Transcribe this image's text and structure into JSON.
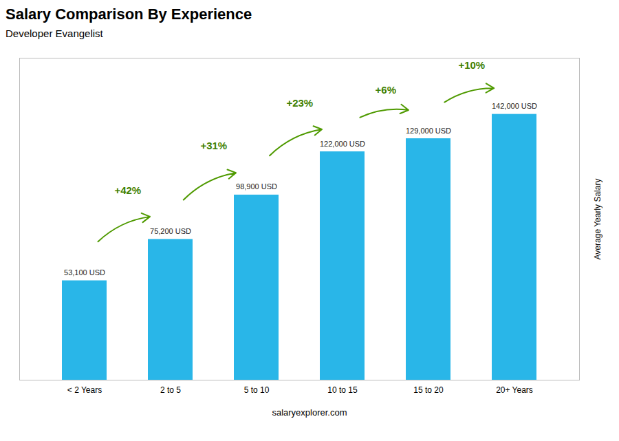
{
  "chart_data": {
    "type": "bar",
    "title": "Salary Comparison By Experience",
    "subtitle": "Developer Evangelist",
    "categories": [
      "< 2 Years",
      "2 to 5",
      "5 to 10",
      "10 to 15",
      "15 to 20",
      "20+ Years"
    ],
    "values": [
      53100,
      75200,
      98900,
      122000,
      129000,
      142000
    ],
    "value_labels": [
      "53,100 USD",
      "75,200 USD",
      "98,900 USD",
      "122,000 USD",
      "129,000 USD",
      "142,000 USD"
    ],
    "data_labels": true,
    "color": "#29b6e8",
    "ylabel": "Average Yearly Salary",
    "ylim": [
      0,
      172000
    ],
    "yticks": [],
    "tick_labels": "x",
    "annotations": [
      {
        "text": "+42%",
        "from": "< 2 Years",
        "to": "2 to 5"
      },
      {
        "text": "+31%",
        "from": "2 to 5",
        "to": "5 to 10"
      },
      {
        "text": "+23%",
        "from": "5 to 10",
        "to": "10 to 15"
      },
      {
        "text": "+6%",
        "from": "10 to 15",
        "to": "15 to 20"
      },
      {
        "text": "+10%",
        "from": "15 to 20",
        "to": "20+ Years"
      }
    ],
    "caption": "salaryexplorer.com"
  }
}
